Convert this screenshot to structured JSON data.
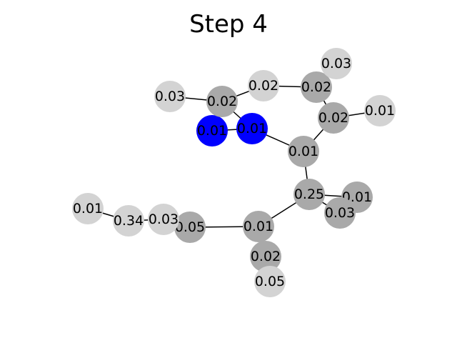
{
  "title": "Step 4",
  "colors": {
    "highlight": "#0000ff",
    "dark": "#a9a9a9",
    "light": "#d3d3d3",
    "edge": "#000000"
  },
  "nodes": [
    {
      "id": "n1",
      "label": "0.01",
      "tone": "highlight"
    },
    {
      "id": "n2",
      "label": "0.01",
      "tone": "highlight"
    },
    {
      "id": "n3",
      "label": "0.02",
      "tone": "dark"
    },
    {
      "id": "n4",
      "label": "0.03",
      "tone": "light"
    },
    {
      "id": "n5",
      "label": "0.02",
      "tone": "light"
    },
    {
      "id": "n6",
      "label": "0.02",
      "tone": "dark"
    },
    {
      "id": "n7",
      "label": "0.03",
      "tone": "light"
    },
    {
      "id": "n8",
      "label": "0.02",
      "tone": "dark"
    },
    {
      "id": "n9",
      "label": "0.01",
      "tone": "light"
    },
    {
      "id": "n10",
      "label": "0.01",
      "tone": "dark"
    },
    {
      "id": "n11",
      "label": "0.25",
      "tone": "dark"
    },
    {
      "id": "n12",
      "label": "0.01",
      "tone": "dark"
    },
    {
      "id": "n13",
      "label": "0.03",
      "tone": "dark"
    },
    {
      "id": "n14",
      "label": "0.01",
      "tone": "dark"
    },
    {
      "id": "n15",
      "label": "0.05",
      "tone": "dark"
    },
    {
      "id": "n16",
      "label": "0.03",
      "tone": "light"
    },
    {
      "id": "n17",
      "label": "0.34",
      "tone": "light"
    },
    {
      "id": "n18",
      "label": "0.01",
      "tone": "light"
    },
    {
      "id": "n19",
      "label": "0.02",
      "tone": "dark"
    },
    {
      "id": "n20",
      "label": "0.05",
      "tone": "light"
    }
  ],
  "edges": [
    [
      "n1",
      "n2"
    ],
    [
      "n2",
      "n3"
    ],
    [
      "n3",
      "n4"
    ],
    [
      "n3",
      "n5"
    ],
    [
      "n5",
      "n6"
    ],
    [
      "n6",
      "n7"
    ],
    [
      "n6",
      "n8"
    ],
    [
      "n8",
      "n9"
    ],
    [
      "n8",
      "n10"
    ],
    [
      "n2",
      "n10"
    ],
    [
      "n10",
      "n11"
    ],
    [
      "n11",
      "n12"
    ],
    [
      "n11",
      "n13"
    ],
    [
      "n11",
      "n14"
    ],
    [
      "n14",
      "n15"
    ],
    [
      "n15",
      "n16"
    ],
    [
      "n16",
      "n17"
    ],
    [
      "n17",
      "n18"
    ],
    [
      "n14",
      "n19"
    ],
    [
      "n19",
      "n20"
    ]
  ]
}
